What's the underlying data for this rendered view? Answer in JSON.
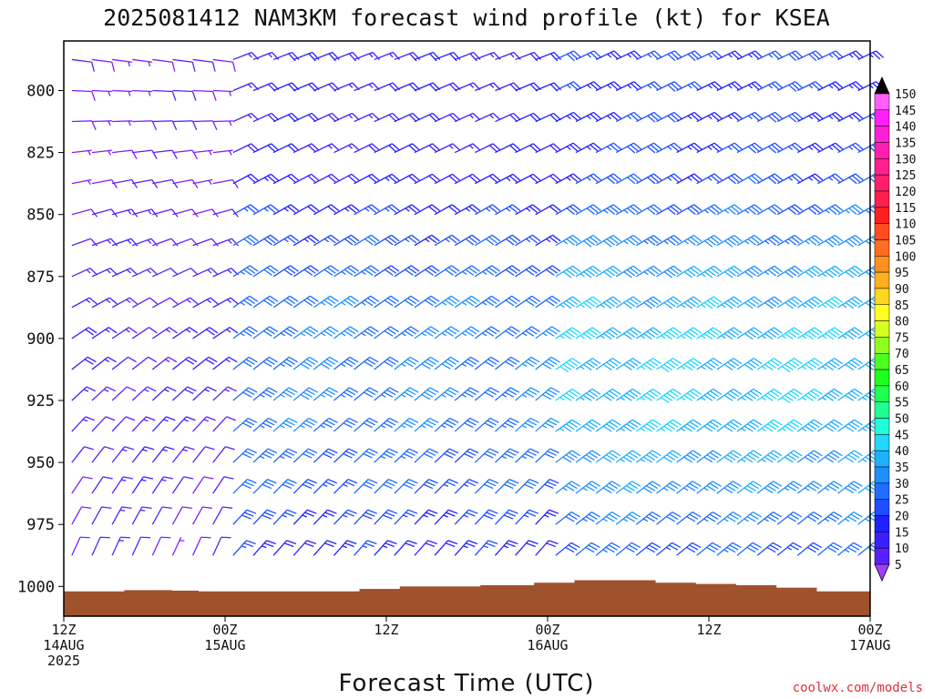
{
  "chart_data": {
    "type": "wind-barb-time-height",
    "title": "2025081412 NAM3KM forecast wind profile (kt) for KSEA",
    "xlabel": "Forecast Time (UTC)",
    "ylabel": "",
    "credit": "coolwx.com/models",
    "x_range_hours": [
      0,
      60
    ],
    "y_range_hPa": [
      1012,
      780
    ],
    "y_axis_inverted": true,
    "x_ticks": [
      {
        "hour": 0,
        "line1": "12Z",
        "line2": "14AUG",
        "line3": "2025"
      },
      {
        "hour": 12,
        "line1": "00Z",
        "line2": "15AUG",
        "line3": ""
      },
      {
        "hour": 24,
        "line1": "12Z",
        "line2": "",
        "line3": ""
      },
      {
        "hour": 36,
        "line1": "00Z",
        "line2": "16AUG",
        "line3": ""
      },
      {
        "hour": 48,
        "line1": "12Z",
        "line2": "",
        "line3": ""
      },
      {
        "hour": 60,
        "line1": "00Z",
        "line2": "17AUG",
        "line3": ""
      }
    ],
    "y_ticks": [
      {
        "value": 800,
        "label": "800"
      },
      {
        "value": 825,
        "label": "825"
      },
      {
        "value": 850,
        "label": "850"
      },
      {
        "value": 875,
        "label": "875"
      },
      {
        "value": 900,
        "label": "900"
      },
      {
        "value": 925,
        "label": "925"
      },
      {
        "value": 950,
        "label": "950"
      },
      {
        "value": 975,
        "label": "975"
      },
      {
        "value": 1000,
        "label": "1000"
      }
    ],
    "colorbar": {
      "levels": [
        "5",
        "10",
        "15",
        "20",
        "25",
        "30",
        "35",
        "40",
        "45",
        "50",
        "55",
        "60",
        "65",
        "70",
        "75",
        "80",
        "85",
        "90",
        "95",
        "100",
        "105",
        "110",
        "115",
        "120",
        "125",
        "130",
        "135",
        "140",
        "145",
        "150"
      ],
      "colors": [
        "#7f1fff",
        "#5a1fff",
        "#3a1fff",
        "#1f1fff",
        "#1f4dff",
        "#1f6dff",
        "#1f8fff",
        "#1fafff",
        "#1fd7ff",
        "#1fffd7",
        "#1fff8f",
        "#1fff4d",
        "#1fff1f",
        "#4dff1f",
        "#8fff1f",
        "#d7ff1f",
        "#ffff1f",
        "#ffd71f",
        "#ffaf1f",
        "#ff8f1f",
        "#ff6d1f",
        "#ff4d1f",
        "#ff1f1f",
        "#ff1f4d",
        "#ff1f6d",
        "#ff1f8f",
        "#ff1faf",
        "#ff1fd7",
        "#ff1fff",
        "#ff5fff"
      ],
      "over_color": "#000000",
      "under_color": "#9f3fff"
    },
    "terrain_color": "#a0522d",
    "terrain_surface_pressure_hPa": [
      [
        0,
        1002
      ],
      [
        3,
        1002
      ],
      [
        4.5,
        1001.5
      ],
      [
        6,
        1001.5
      ],
      [
        8,
        1001.7
      ],
      [
        10,
        1002
      ],
      [
        11,
        1002
      ],
      [
        14,
        1002
      ],
      [
        17,
        1002
      ],
      [
        20,
        1002
      ],
      [
        22,
        1001
      ],
      [
        25,
        1000
      ],
      [
        28,
        1000
      ],
      [
        31,
        999.5
      ],
      [
        35,
        998.5
      ],
      [
        38,
        997.5
      ],
      [
        41,
        997.5
      ],
      [
        44,
        998.5
      ],
      [
        47,
        999
      ],
      [
        50,
        999.5
      ],
      [
        53,
        1000.5
      ],
      [
        56,
        1002
      ],
      [
        60,
        1002
      ]
    ],
    "wind_barbs": {
      "times_hours_step": 1.5,
      "levels_hPa_step": 12.5,
      "regime": [
        {
          "hours": [
            0,
            12
          ],
          "low_level_direction_deg": 200,
          "upper_direction_deg": 280,
          "speed_kt": [
            5,
            15
          ]
        },
        {
          "hours": [
            12,
            36
          ],
          "low_level_direction_deg": 220,
          "upper_direction_deg": 250,
          "speed_kt": [
            10,
            35
          ]
        },
        {
          "hours": [
            36,
            60
          ],
          "low_level_direction_deg": 230,
          "upper_direction_deg": 245,
          "speed_kt": [
            15,
            45
          ]
        }
      ]
    }
  }
}
